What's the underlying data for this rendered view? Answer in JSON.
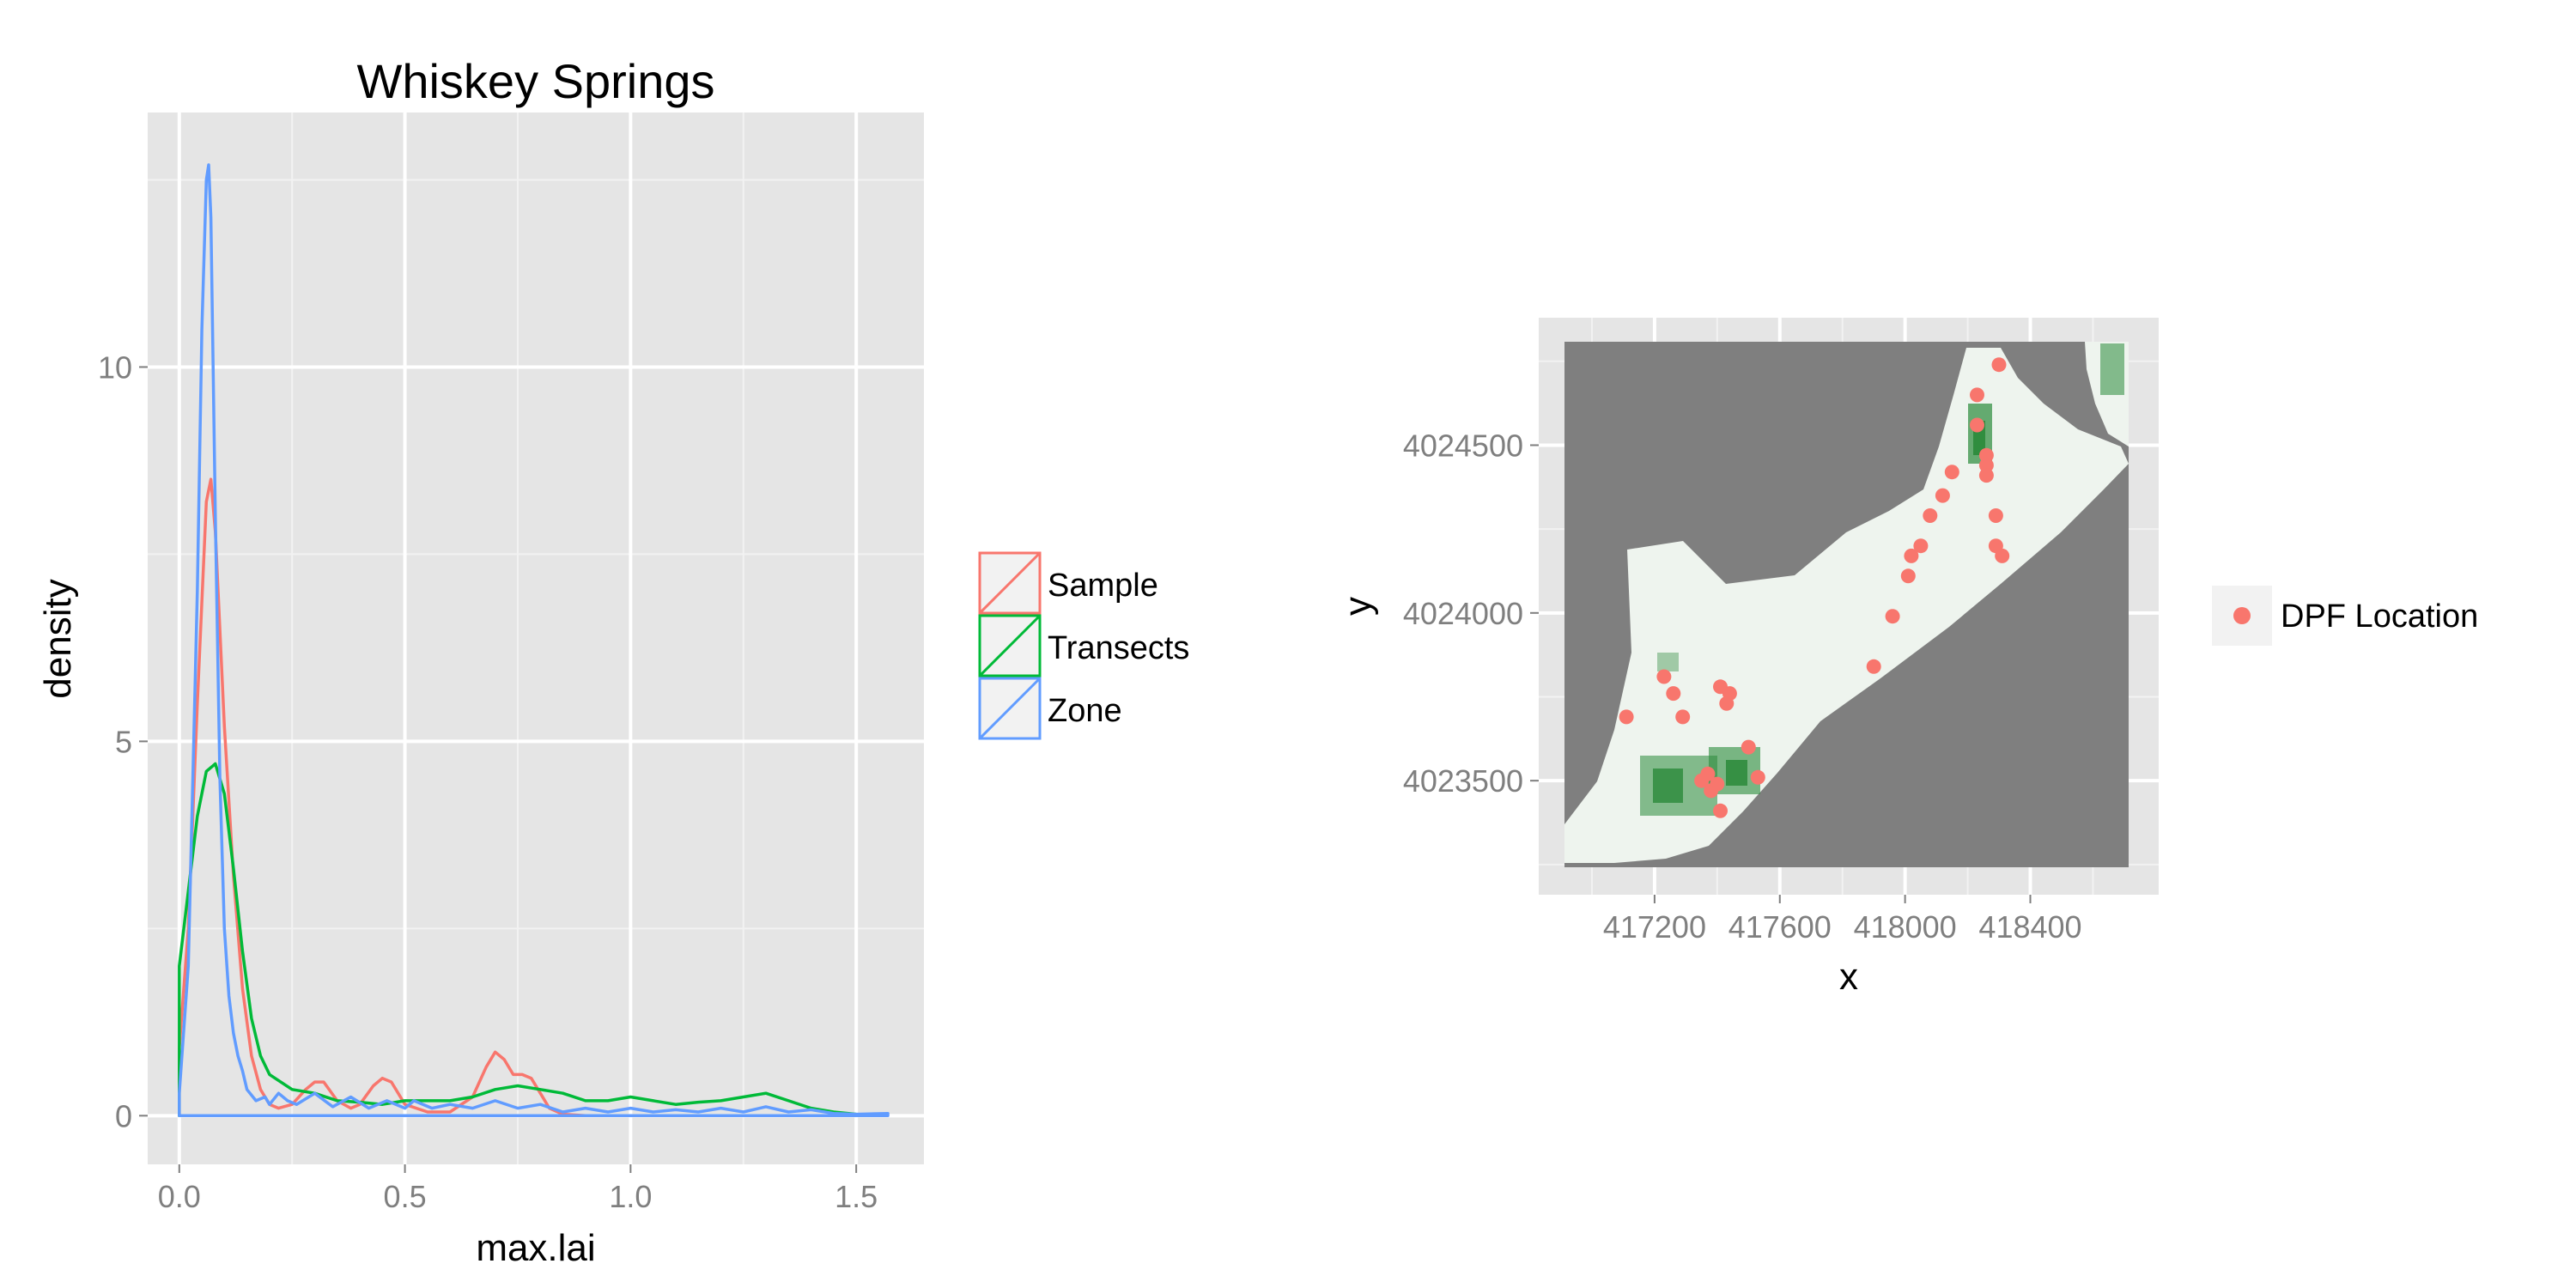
{
  "chart_data": [
    {
      "type": "line",
      "subtype": "density",
      "title": "Whiskey Springs",
      "xlabel": "max.lai",
      "ylabel": "density",
      "xlim": [
        -0.07,
        1.65
      ],
      "ylim": [
        -0.65,
        13.4
      ],
      "xticks": [
        0.0,
        0.5,
        1.0,
        1.5
      ],
      "xtick_labels": [
        "0.0",
        "0.5",
        "1.0",
        "1.5"
      ],
      "yticks": [
        0,
        5,
        10
      ],
      "ytick_labels": [
        "0",
        "5",
        "10"
      ],
      "grid": true,
      "legend_position": "right",
      "series": [
        {
          "name": "Sample",
          "color": "#F8766D",
          "x": [
            0.0,
            0.02,
            0.04,
            0.06,
            0.07,
            0.08,
            0.1,
            0.12,
            0.14,
            0.16,
            0.18,
            0.2,
            0.22,
            0.25,
            0.28,
            0.3,
            0.32,
            0.35,
            0.38,
            0.4,
            0.43,
            0.45,
            0.47,
            0.5,
            0.55,
            0.6,
            0.65,
            0.68,
            0.7,
            0.72,
            0.74,
            0.76,
            0.78,
            0.8,
            0.82,
            0.85,
            0.9
          ],
          "y": [
            0.9,
            2.5,
            5.5,
            8.2,
            8.5,
            7.8,
            5.2,
            3.2,
            1.7,
            0.8,
            0.35,
            0.15,
            0.1,
            0.15,
            0.35,
            0.45,
            0.45,
            0.2,
            0.1,
            0.15,
            0.4,
            0.5,
            0.45,
            0.15,
            0.05,
            0.05,
            0.25,
            0.65,
            0.85,
            0.75,
            0.55,
            0.55,
            0.5,
            0.3,
            0.1,
            0.02,
            0.0
          ]
        },
        {
          "name": "Transects",
          "color": "#00BA38",
          "x": [
            0.0,
            0.02,
            0.04,
            0.06,
            0.08,
            0.1,
            0.12,
            0.14,
            0.16,
            0.18,
            0.2,
            0.25,
            0.3,
            0.35,
            0.4,
            0.45,
            0.5,
            0.55,
            0.6,
            0.65,
            0.7,
            0.75,
            0.8,
            0.85,
            0.9,
            0.95,
            1.0,
            1.05,
            1.1,
            1.15,
            1.2,
            1.25,
            1.3,
            1.35,
            1.4,
            1.45,
            1.5,
            1.55
          ],
          "y": [
            2.0,
            3.0,
            4.0,
            4.6,
            4.7,
            4.3,
            3.3,
            2.2,
            1.3,
            0.8,
            0.55,
            0.35,
            0.3,
            0.2,
            0.18,
            0.15,
            0.2,
            0.2,
            0.2,
            0.25,
            0.35,
            0.4,
            0.35,
            0.3,
            0.2,
            0.2,
            0.25,
            0.2,
            0.15,
            0.18,
            0.2,
            0.25,
            0.3,
            0.2,
            0.1,
            0.05,
            0.02,
            0.0
          ]
        },
        {
          "name": "Zone",
          "color": "#619CFF",
          "x": [
            0.0,
            0.02,
            0.04,
            0.05,
            0.06,
            0.065,
            0.07,
            0.08,
            0.09,
            0.1,
            0.11,
            0.12,
            0.13,
            0.14,
            0.15,
            0.17,
            0.19,
            0.2,
            0.22,
            0.24,
            0.26,
            0.3,
            0.34,
            0.38,
            0.42,
            0.46,
            0.5,
            0.52,
            0.56,
            0.6,
            0.65,
            0.7,
            0.75,
            0.8,
            0.85,
            0.9,
            0.95,
            1.0,
            1.05,
            1.1,
            1.15,
            1.2,
            1.25,
            1.3,
            1.35,
            1.4,
            1.45,
            1.5,
            1.57
          ],
          "y": [
            0.3,
            2.0,
            7.0,
            10.5,
            12.5,
            12.7,
            12.0,
            8.0,
            4.5,
            2.5,
            1.6,
            1.1,
            0.8,
            0.6,
            0.35,
            0.2,
            0.25,
            0.15,
            0.3,
            0.2,
            0.15,
            0.3,
            0.12,
            0.25,
            0.1,
            0.2,
            0.1,
            0.2,
            0.1,
            0.15,
            0.1,
            0.2,
            0.1,
            0.15,
            0.05,
            0.1,
            0.05,
            0.1,
            0.05,
            0.08,
            0.05,
            0.1,
            0.05,
            0.12,
            0.05,
            0.08,
            0.03,
            0.02,
            0.03
          ]
        }
      ]
    },
    {
      "type": "heatmap",
      "subtype": "raster with point overlay",
      "title": "",
      "xlabel": "x",
      "ylabel": "y",
      "xlim": [
        416830,
        418810
      ],
      "ylim": [
        4023160,
        4024880
      ],
      "xticks": [
        417200,
        417600,
        418000,
        418400
      ],
      "xtick_labels": [
        "417200",
        "417600",
        "418000",
        "418400"
      ],
      "yticks": [
        4023500,
        4024000,
        4024500
      ],
      "ytick_labels": [
        "4023500",
        "4024000",
        "4024500"
      ],
      "grid": true,
      "legend_position": "right",
      "raster_colors": {
        "nodata": "#7f7f7f",
        "low": "#eef4ee",
        "high": "#2a8a3a"
      },
      "series": [
        {
          "name": "DPF Location",
          "color": "#F8766D",
          "points": [
            [
              418300,
              4024740
            ],
            [
              418230,
              4024650
            ],
            [
              418230,
              4024560
            ],
            [
              418260,
              4024470
            ],
            [
              418260,
              4024440
            ],
            [
              418260,
              4024410
            ],
            [
              418150,
              4024420
            ],
            [
              418120,
              4024350
            ],
            [
              418080,
              4024290
            ],
            [
              418290,
              4024290
            ],
            [
              418050,
              4024200
            ],
            [
              418290,
              4024200
            ],
            [
              418020,
              4024170
            ],
            [
              418310,
              4024170
            ],
            [
              418010,
              4024110
            ],
            [
              417960,
              4023990
            ],
            [
              417900,
              4023840
            ],
            [
              417230,
              4023810
            ],
            [
              417410,
              4023780
            ],
            [
              417260,
              4023760
            ],
            [
              417440,
              4023760
            ],
            [
              417430,
              4023730
            ],
            [
              417110,
              4023690
            ],
            [
              417290,
              4023690
            ],
            [
              417500,
              4023600
            ],
            [
              417370,
              4023520
            ],
            [
              417530,
              4023510
            ],
            [
              417350,
              4023500
            ],
            [
              417400,
              4023490
            ],
            [
              417380,
              4023470
            ],
            [
              417410,
              4023410
            ]
          ]
        }
      ]
    }
  ],
  "legends": {
    "left": [
      "Sample",
      "Transects",
      "Zone"
    ],
    "right": [
      "DPF Location"
    ]
  }
}
